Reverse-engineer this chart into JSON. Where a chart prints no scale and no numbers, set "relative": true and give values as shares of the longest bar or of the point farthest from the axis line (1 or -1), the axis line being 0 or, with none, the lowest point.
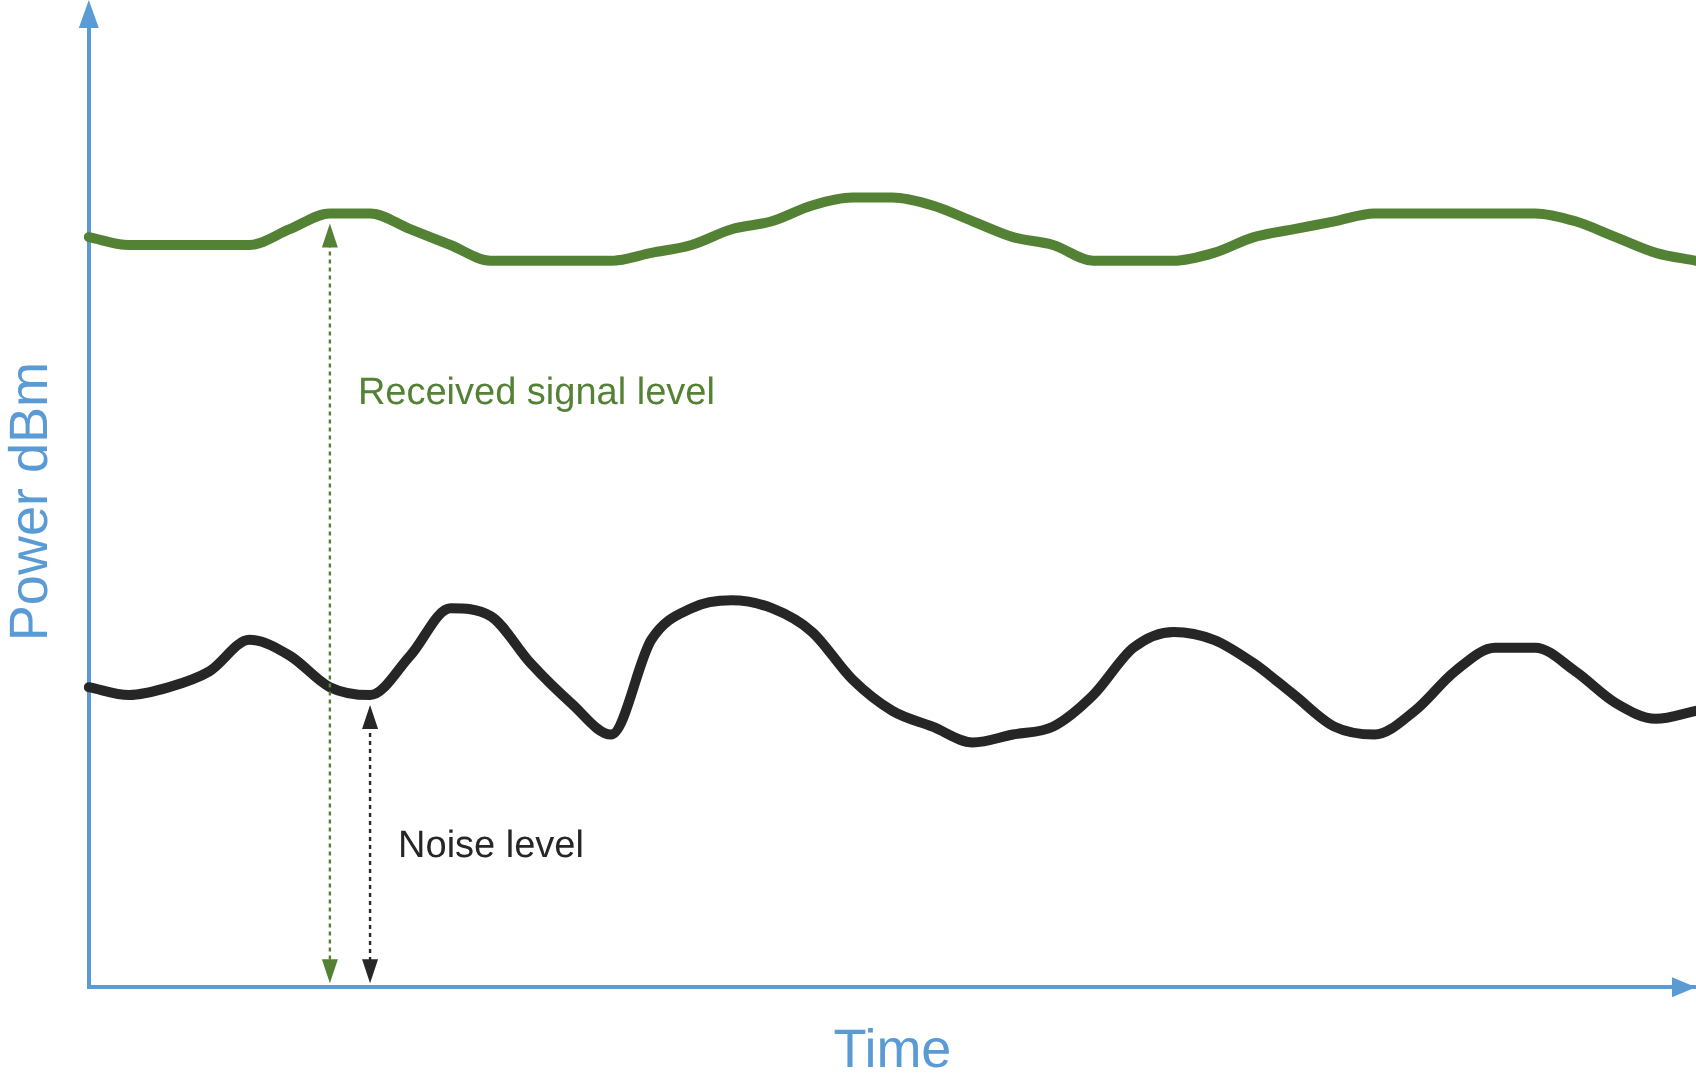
{
  "chart_data": {
    "type": "line",
    "relative": true,
    "xlabel": "Time",
    "ylabel": "Power dBm",
    "categories": [
      null,
      null,
      null,
      null,
      null,
      null,
      null,
      null,
      null,
      null,
      null,
      null,
      null,
      null,
      null,
      null,
      null,
      null,
      null,
      null,
      null,
      null,
      null,
      null,
      null,
      null,
      null,
      null,
      null,
      null,
      null,
      null,
      null,
      null,
      null,
      null,
      null,
      null,
      null,
      null,
      null
    ],
    "series": [
      {
        "color": "#548235",
        "values": [
          0.95,
          0.94,
          0.94,
          0.94,
          0.94,
          0.96,
          0.98,
          0.98,
          0.96,
          0.94,
          0.92,
          0.92,
          0.92,
          0.92,
          0.93,
          0.94,
          0.96,
          0.97,
          0.99,
          1,
          1,
          0.99,
          0.97,
          0.95,
          0.94,
          0.92,
          0.92,
          0.92,
          0.93,
          0.95,
          0.96,
          0.97,
          0.98,
          0.98,
          0.98,
          0.98,
          0.98,
          0.97,
          0.95,
          0.93,
          0.92
        ]
      },
      {
        "color": "#262626",
        "values": [
          0.38,
          0.37,
          0.38,
          0.4,
          0.44,
          0.42,
          0.38,
          0.37,
          0.42,
          0.48,
          0.47,
          0.41,
          0.36,
          0.32,
          0.44,
          0.48,
          0.49,
          0.48,
          0.45,
          0.39,
          0.35,
          0.33,
          0.31,
          0.32,
          0.33,
          0.37,
          0.43,
          0.45,
          0.44,
          0.41,
          0.37,
          0.33,
          0.32,
          0.35,
          0.4,
          0.43,
          0.43,
          0.4,
          0.36,
          0.34,
          0.35
        ]
      }
    ],
    "annotations": [
      "Received signal level",
      "Noise level"
    ],
    "grid": false,
    "legend": false,
    "marker": "none",
    "line_style": "solid"
  }
}
